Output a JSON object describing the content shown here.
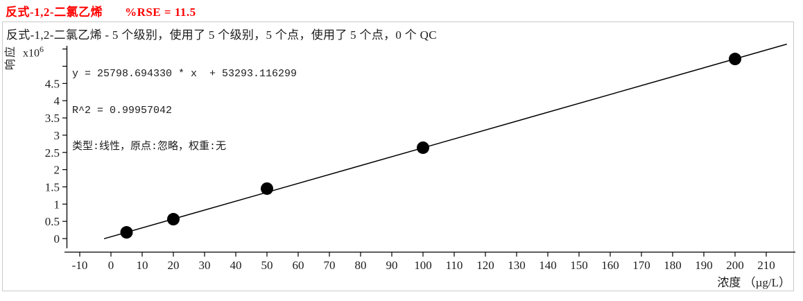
{
  "header": {
    "compound": "反式-1,2-二氯乙烯",
    "rse": "%RSE = 11.5",
    "color": "#ff0000"
  },
  "subtitle": "反式-1,2-二氯乙烯 - 5 个级别，使用了 5 个级别，5 个点，使用了 5 个点，0 个 QC",
  "annotation": {
    "equation": "y = 25798.694330 * x  + 53293.116299",
    "r_squared": "R^2 = 0.99957042",
    "fit_info": "类型:线性，原点:忽略，权重:无"
  },
  "chart_data": {
    "type": "scatter",
    "title": "反式-1,2-二氯乙烯  %RSE = 11.5",
    "xlabel": "浓度 （µg/L）",
    "ylabel": "响应",
    "y_multiplier_base": "x10",
    "y_multiplier_exp": "6",
    "x_ticks": [
      -10,
      0,
      10,
      20,
      30,
      40,
      50,
      60,
      70,
      80,
      90,
      100,
      110,
      120,
      130,
      140,
      150,
      160,
      170,
      180,
      190,
      200,
      210
    ],
    "y_ticks_labeled": [
      0,
      0.5,
      1,
      1.5,
      2,
      2.5,
      3,
      3.5,
      4,
      4.5
    ],
    "y_ticks_unlabeled": [
      5,
      5.5
    ],
    "xlim": [
      -14.9,
      219.4
    ],
    "ylim": [
      -290000,
      5600000
    ],
    "grid": false,
    "legend": false,
    "points": [
      {
        "x": 5,
        "y": 181000
      },
      {
        "x": 20,
        "y": 563000
      },
      {
        "x": 50,
        "y": 1449000
      },
      {
        "x": 100,
        "y": 2636000
      },
      {
        "x": 200,
        "y": 5211000
      }
    ],
    "fit": {
      "type": "linear",
      "slope": 25798.69433,
      "intercept": 53293.116299,
      "x_start": -2.2,
      "x_end": 216.6
    },
    "point_color": "#000000",
    "line_color": "#000000"
  }
}
